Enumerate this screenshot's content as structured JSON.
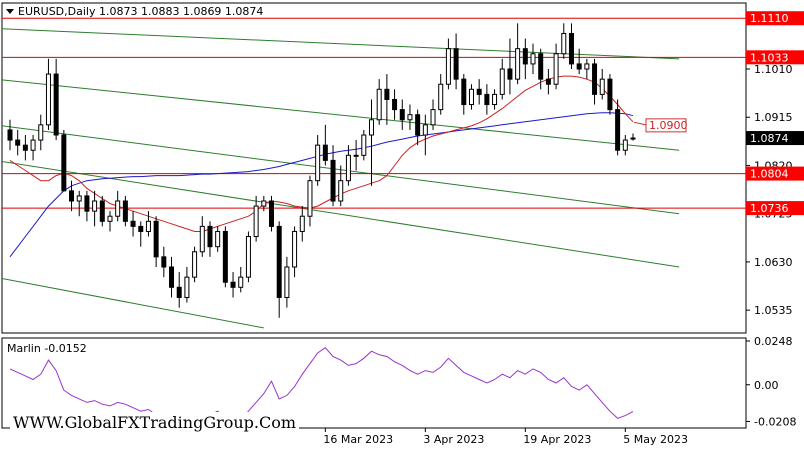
{
  "header": {
    "symbol": "EURUSD,Daily",
    "quote": "1.0873 1.0883 1.0869 1.0874"
  },
  "watermark": "WWW.GlobalFXTradingGroup.Com",
  "chart_data": {
    "type": "candlestick",
    "price_axis": {
      "range": [
        1.049,
        1.114
      ],
      "tick_labels": [
        "1.1010",
        "1.0915",
        "1.0820",
        "1.0725",
        "1.0630",
        "1.0535"
      ],
      "tick_values": [
        1.101,
        1.0915,
        1.082,
        1.0725,
        1.063,
        1.0535
      ]
    },
    "price_marks": [
      {
        "label": "1.1110",
        "value": 1.111,
        "style": "red-box",
        "line": true
      },
      {
        "label": "1.1033",
        "value": 1.1033,
        "style": "red-box",
        "line": true
      },
      {
        "label": "1.0874",
        "value": 1.0874,
        "style": "black-box",
        "line": false
      },
      {
        "label": "1.0804",
        "value": 1.0804,
        "style": "red-box",
        "line": true
      },
      {
        "label": "1.0736",
        "value": 1.0736,
        "style": "red-box",
        "line": true
      }
    ],
    "annotation": {
      "label": "1.0900",
      "value": 1.09
    },
    "date_labels": [
      "16 Mar 2023",
      "3 Apr 2023",
      "19 Apr 2023",
      "5 May 2023"
    ],
    "date_label_index": [
      41,
      54,
      67,
      80
    ],
    "candles": [
      [
        1.089,
        1.091,
        1.085,
        1.087
      ],
      [
        1.087,
        1.089,
        1.084,
        1.086
      ],
      [
        1.086,
        1.088,
        1.083,
        1.085
      ],
      [
        1.085,
        1.088,
        1.083,
        1.087
      ],
      [
        1.087,
        1.092,
        1.085,
        1.09
      ],
      [
        1.09,
        1.103,
        1.089,
        1.1
      ],
      [
        1.1,
        1.103,
        1.087,
        1.088
      ],
      [
        1.088,
        1.089,
        1.077,
        1.077
      ],
      [
        1.077,
        1.079,
        1.073,
        1.075
      ],
      [
        1.075,
        1.077,
        1.072,
        1.076
      ],
      [
        1.076,
        1.077,
        1.071,
        1.073
      ],
      [
        1.073,
        1.077,
        1.07,
        1.075
      ],
      [
        1.075,
        1.076,
        1.07,
        1.071
      ],
      [
        1.071,
        1.073,
        1.069,
        1.072
      ],
      [
        1.072,
        1.077,
        1.071,
        1.075
      ],
      [
        1.075,
        1.076,
        1.07,
        1.071
      ],
      [
        1.071,
        1.073,
        1.068,
        1.07
      ],
      [
        1.07,
        1.071,
        1.066,
        1.069
      ],
      [
        1.069,
        1.073,
        1.068,
        1.071
      ],
      [
        1.071,
        1.072,
        1.062,
        1.064
      ],
      [
        1.064,
        1.066,
        1.06,
        1.062
      ],
      [
        1.062,
        1.064,
        1.056,
        1.058
      ],
      [
        1.058,
        1.061,
        1.054,
        1.056
      ],
      [
        1.056,
        1.062,
        1.055,
        1.06
      ],
      [
        1.06,
        1.066,
        1.059,
        1.065
      ],
      [
        1.065,
        1.072,
        1.064,
        1.07
      ],
      [
        1.07,
        1.071,
        1.064,
        1.066
      ],
      [
        1.066,
        1.07,
        1.065,
        1.069
      ],
      [
        1.069,
        1.07,
        1.058,
        1.059
      ],
      [
        1.059,
        1.061,
        1.056,
        1.058
      ],
      [
        1.058,
        1.062,
        1.057,
        1.06
      ],
      [
        1.06,
        1.069,
        1.059,
        1.068
      ],
      [
        1.068,
        1.076,
        1.067,
        1.074
      ],
      [
        1.074,
        1.076,
        1.073,
        1.075
      ],
      [
        1.075,
        1.076,
        1.069,
        1.07
      ],
      [
        1.07,
        1.071,
        1.052,
        1.056
      ],
      [
        1.056,
        1.064,
        1.054,
        1.062
      ],
      [
        1.062,
        1.07,
        1.06,
        1.069
      ],
      [
        1.069,
        1.074,
        1.067,
        1.072
      ],
      [
        1.072,
        1.08,
        1.07,
        1.079
      ],
      [
        1.079,
        1.088,
        1.078,
        1.086
      ],
      [
        1.086,
        1.09,
        1.082,
        1.083
      ],
      [
        1.083,
        1.086,
        1.074,
        1.075
      ],
      [
        1.075,
        1.082,
        1.074,
        1.079
      ],
      [
        1.079,
        1.086,
        1.078,
        1.084
      ],
      [
        1.084,
        1.087,
        1.081,
        1.084
      ],
      [
        1.084,
        1.089,
        1.083,
        1.088
      ],
      [
        1.088,
        1.095,
        1.078,
        1.091
      ],
      [
        1.091,
        1.099,
        1.09,
        1.097
      ],
      [
        1.097,
        1.1,
        1.09,
        1.095
      ],
      [
        1.095,
        1.097,
        1.091,
        1.093
      ],
      [
        1.093,
        1.095,
        1.089,
        1.091
      ],
      [
        1.091,
        1.094,
        1.089,
        1.092
      ],
      [
        1.092,
        1.093,
        1.086,
        1.088
      ],
      [
        1.088,
        1.092,
        1.084,
        1.09
      ],
      [
        1.09,
        1.095,
        1.089,
        1.093
      ],
      [
        1.093,
        1.1,
        1.092,
        1.098
      ],
      [
        1.098,
        1.107,
        1.097,
        1.105
      ],
      [
        1.105,
        1.108,
        1.097,
        1.099
      ],
      [
        1.099,
        1.1,
        1.092,
        1.094
      ],
      [
        1.094,
        1.098,
        1.093,
        1.097
      ],
      [
        1.097,
        1.099,
        1.094,
        1.096
      ],
      [
        1.096,
        1.098,
        1.092,
        1.094
      ],
      [
        1.094,
        1.097,
        1.093,
        1.096
      ],
      [
        1.096,
        1.103,
        1.095,
        1.101
      ],
      [
        1.101,
        1.107,
        1.096,
        1.099
      ],
      [
        1.099,
        1.11,
        1.098,
        1.105
      ],
      [
        1.105,
        1.107,
        1.099,
        1.102
      ],
      [
        1.102,
        1.106,
        1.1,
        1.104
      ],
      [
        1.104,
        1.105,
        1.097,
        1.099
      ],
      [
        1.099,
        1.101,
        1.096,
        1.098
      ],
      [
        1.098,
        1.106,
        1.097,
        1.104
      ],
      [
        1.104,
        1.11,
        1.103,
        1.108
      ],
      [
        1.108,
        1.11,
        1.101,
        1.102
      ],
      [
        1.102,
        1.105,
        1.1,
        1.101
      ],
      [
        1.101,
        1.103,
        1.099,
        1.102
      ],
      [
        1.102,
        1.103,
        1.094,
        1.096
      ],
      [
        1.096,
        1.101,
        1.095,
        1.099
      ],
      [
        1.099,
        1.1,
        1.092,
        1.093
      ],
      [
        1.093,
        1.095,
        1.084,
        1.085
      ],
      [
        1.085,
        1.088,
        1.084,
        1.087
      ],
      [
        1.0873,
        1.0883,
        1.0869,
        1.0874
      ]
    ],
    "indicators": [
      {
        "id": "slow-ma",
        "color": "#1a1acc",
        "values": [
          1.064,
          1.066,
          1.068,
          1.07,
          1.072,
          1.074,
          1.0755,
          1.077,
          1.078,
          1.0785,
          1.079,
          1.0792,
          1.0794,
          1.0795,
          1.0796,
          1.0797,
          1.0798,
          1.0798,
          1.0799,
          1.08,
          1.08,
          1.08,
          1.08,
          1.0801,
          1.0802,
          1.0803,
          1.0803,
          1.0804,
          1.0805,
          1.0806,
          1.0807,
          1.0808,
          1.081,
          1.0812,
          1.0815,
          1.0818,
          1.0822,
          1.0826,
          1.083,
          1.0834,
          1.0838,
          1.0842,
          1.0845,
          1.0848,
          1.085,
          1.0852,
          1.0855,
          1.0858,
          1.0862,
          1.0866,
          1.0869,
          1.0872,
          1.0875,
          1.0878,
          1.088,
          1.0882,
          1.0884,
          1.0886,
          1.0888,
          1.089,
          1.0892,
          1.0894,
          1.0896,
          1.0898,
          1.09,
          1.0902,
          1.0904,
          1.0906,
          1.0908,
          1.091,
          1.0912,
          1.0914,
          1.0916,
          1.0918,
          1.092,
          1.0922,
          1.0923,
          1.0924,
          1.0924,
          1.0923,
          1.0922,
          1.0918
        ]
      },
      {
        "id": "fast-ma",
        "color": "#cc2222",
        "values": [
          1.083,
          1.082,
          1.081,
          1.08,
          1.079,
          1.079,
          1.08,
          1.0805,
          1.08,
          1.079,
          1.0775,
          1.0765,
          1.0755,
          1.0745,
          1.074,
          1.0735,
          1.073,
          1.0725,
          1.072,
          1.0715,
          1.071,
          1.0705,
          1.07,
          1.0695,
          1.069,
          1.069,
          1.0695,
          1.07,
          1.0705,
          1.071,
          1.0715,
          1.072,
          1.073,
          1.0745,
          1.075,
          1.0748,
          1.0745,
          1.074,
          1.0738,
          1.0736,
          1.074,
          1.0748,
          1.0756,
          1.0764,
          1.077,
          1.0775,
          1.078,
          1.0785,
          1.079,
          1.08,
          1.082,
          1.084,
          1.0855,
          1.0865,
          1.0872,
          1.0878,
          1.0882,
          1.0886,
          1.089,
          1.0894,
          1.0898,
          1.0904,
          1.0912,
          1.0922,
          1.0932,
          1.0944,
          1.0956,
          1.0968,
          1.0976,
          1.0984,
          1.099,
          1.0994,
          1.0996,
          1.0996,
          1.0994,
          1.099,
          1.0984,
          1.0972,
          1.0956,
          1.094,
          1.0922,
          1.0906
        ]
      }
    ],
    "channels": [
      {
        "color": "#2e7d2e",
        "p1": [
          -2,
          1.099
        ],
        "p2": [
          87,
          1.085
        ]
      },
      {
        "color": "#2e7d2e",
        "p1": [
          -2,
          1.09
        ],
        "p2": [
          87,
          1.0725
        ]
      },
      {
        "color": "#2e7d2e",
        "p1": [
          -2,
          1.083
        ],
        "p2": [
          87,
          1.062
        ]
      },
      {
        "color": "#2e7d2e",
        "p1": [
          -2,
          1.06
        ],
        "p2": [
          33,
          1.05
        ]
      },
      {
        "color": "#2e7d2e",
        "p1": [
          -2,
          1.109
        ],
        "p2": [
          87,
          1.103
        ]
      }
    ],
    "oscillator": {
      "label": "Marlin -0.0152",
      "range": [
        -0.0245,
        0.0265
      ],
      "tick_labels": [
        "0.0248",
        "0.00",
        "-0.0208"
      ],
      "tick_values": [
        0.0248,
        0.0,
        -0.0208
      ],
      "color": "#9933cc",
      "values": [
        0.009,
        0.007,
        0.005,
        0.003,
        0.006,
        0.014,
        0.008,
        -0.003,
        -0.006,
        -0.008,
        -0.01,
        -0.009,
        -0.011,
        -0.012,
        -0.01,
        -0.011,
        -0.013,
        -0.015,
        -0.014,
        -0.017,
        -0.019,
        -0.021,
        -0.023,
        -0.022,
        -0.02,
        -0.016,
        -0.017,
        -0.015,
        -0.019,
        -0.021,
        -0.02,
        -0.015,
        -0.01,
        -0.005,
        0.002,
        -0.008,
        -0.006,
        -0.001,
        0.006,
        0.012,
        0.018,
        0.021,
        0.016,
        0.014,
        0.011,
        0.012,
        0.015,
        0.019,
        0.017,
        0.016,
        0.013,
        0.011,
        0.008,
        0.006,
        0.008,
        0.007,
        0.01,
        0.015,
        0.011,
        0.007,
        0.005,
        0.003,
        0.001,
        0.003,
        0.006,
        0.004,
        0.008,
        0.006,
        0.009,
        0.007,
        0.003,
        0.001,
        0.004,
        -0.001,
        -0.003,
        0.0,
        -0.005,
        -0.01,
        -0.015,
        -0.019,
        -0.0175,
        -0.0152
      ]
    }
  }
}
